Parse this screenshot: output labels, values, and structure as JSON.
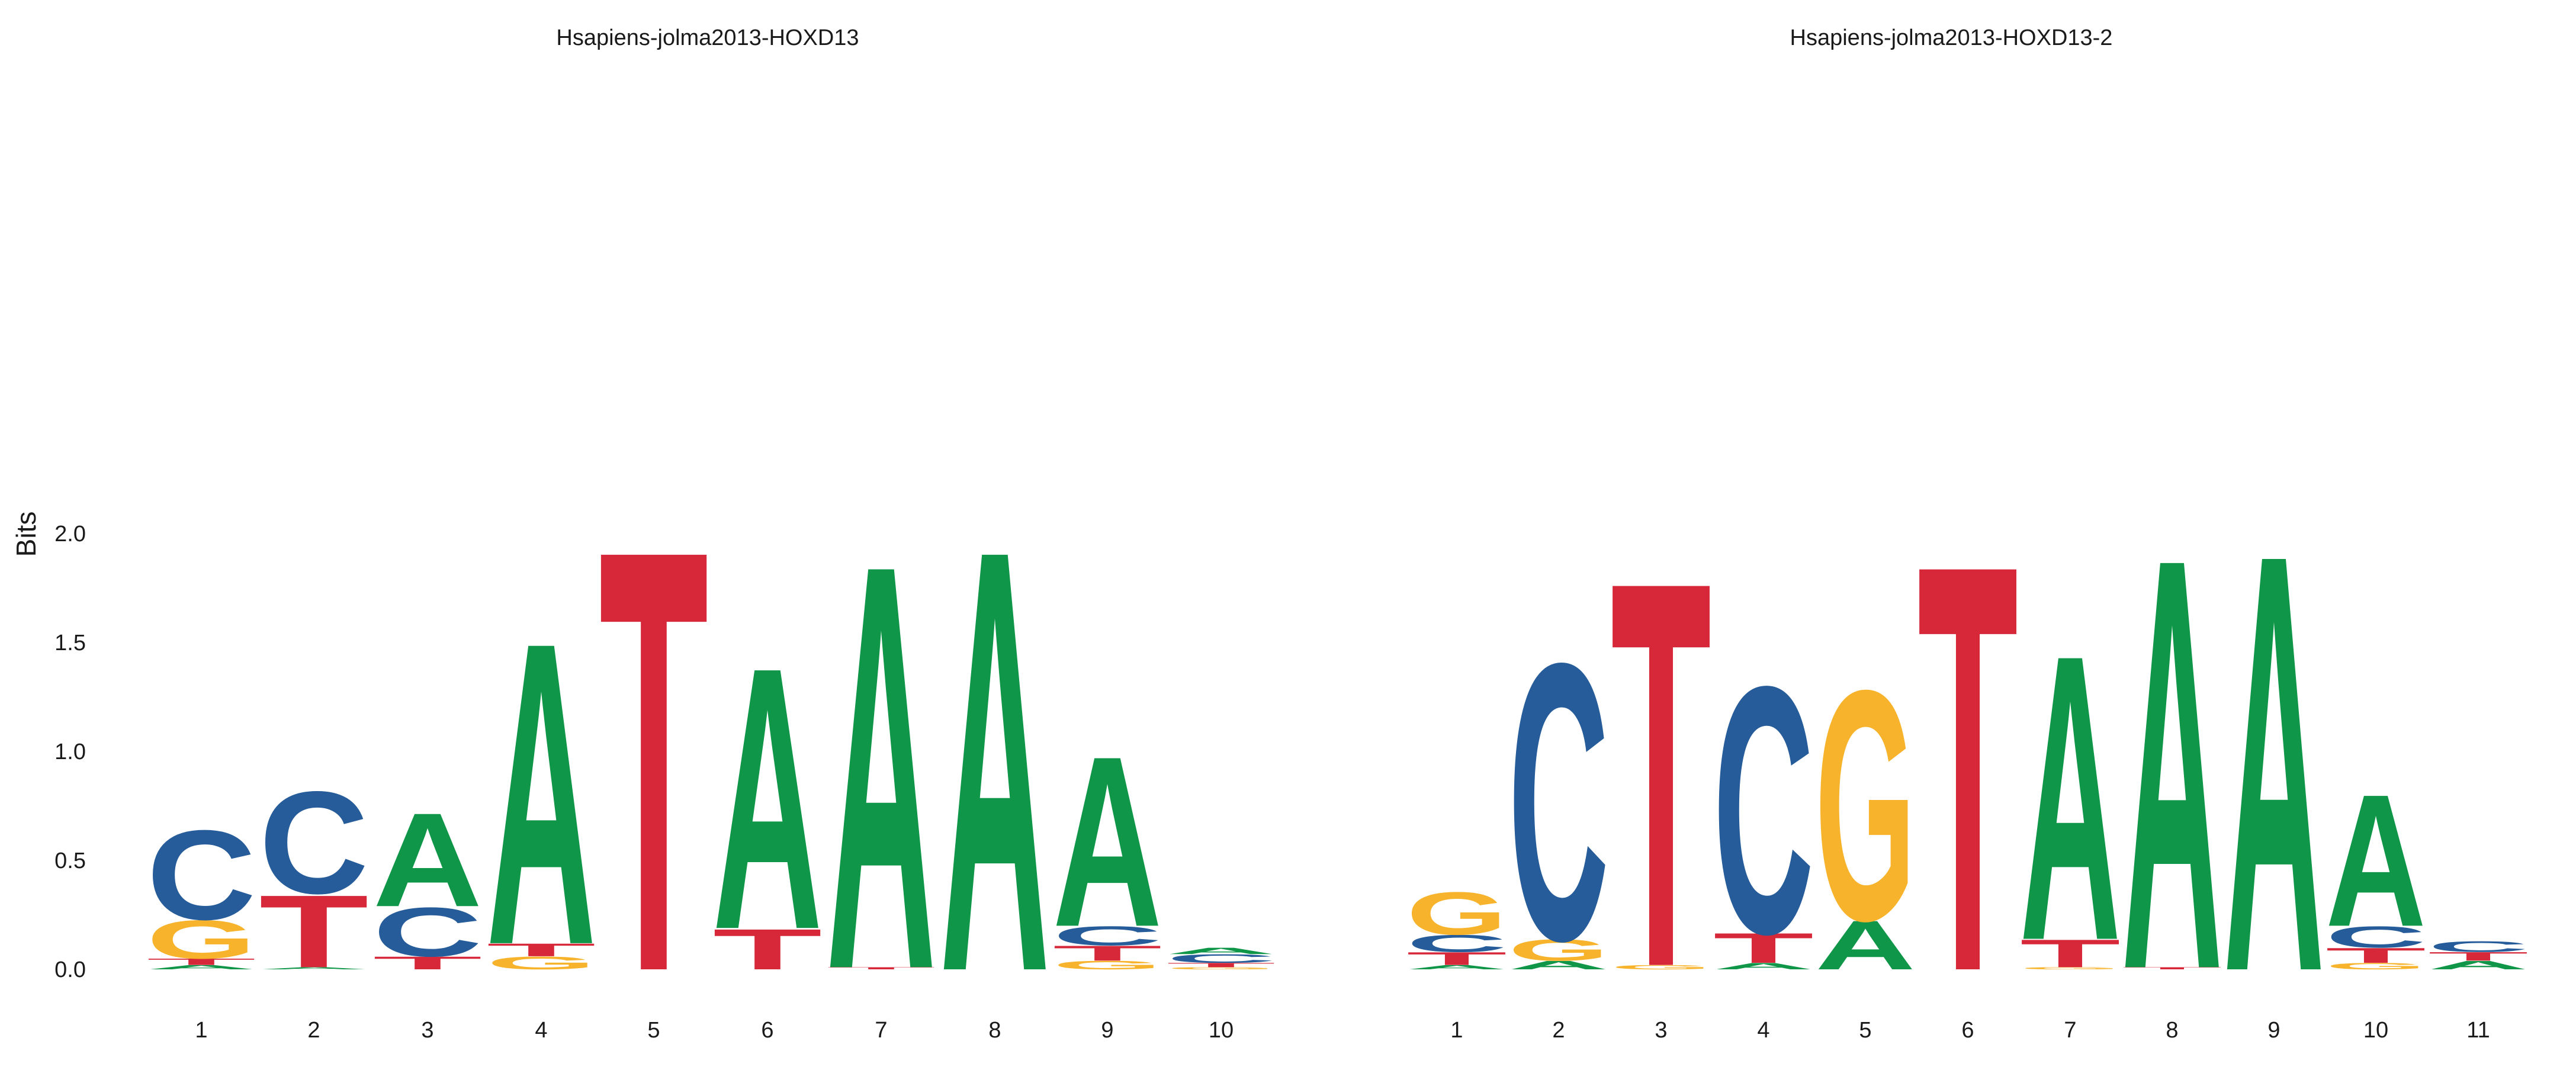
{
  "colors": {
    "A": "#109648",
    "C": "#255C99",
    "G": "#F7B32B",
    "T": "#D62839"
  },
  "chart_data": [
    {
      "type": "sequence-logo",
      "title": "Hsapiens-jolma2013-HOXD13",
      "ylabel": "Bits",
      "ylim": [
        0,
        2
      ],
      "yticks": [
        "0.0",
        "0.5",
        "1.0",
        "1.5",
        "2.0"
      ],
      "positions": [
        {
          "label": "1",
          "stack": [
            {
              "letter": "A",
              "bits": 0.02
            },
            {
              "letter": "T",
              "bits": 0.03
            },
            {
              "letter": "G",
              "bits": 0.18
            },
            {
              "letter": "C",
              "bits": 0.42
            }
          ]
        },
        {
          "label": "2",
          "stack": [
            {
              "letter": "A",
              "bits": 0.01
            },
            {
              "letter": "T",
              "bits": 0.34
            },
            {
              "letter": "C",
              "bits": 0.48
            }
          ]
        },
        {
          "label": "3",
          "stack": [
            {
              "letter": "T",
              "bits": 0.06
            },
            {
              "letter": "C",
              "bits": 0.23
            },
            {
              "letter": "A",
              "bits": 0.44
            }
          ]
        },
        {
          "label": "4",
          "stack": [
            {
              "letter": "G",
              "bits": 0.06
            },
            {
              "letter": "T",
              "bits": 0.06
            },
            {
              "letter": "A",
              "bits": 1.42
            }
          ]
        },
        {
          "label": "5",
          "stack": [
            {
              "letter": "T",
              "bits": 1.98
            }
          ]
        },
        {
          "label": "6",
          "stack": [
            {
              "letter": "T",
              "bits": 0.19
            },
            {
              "letter": "A",
              "bits": 1.23
            }
          ]
        },
        {
          "label": "7",
          "stack": [
            {
              "letter": "T",
              "bits": 0.01
            },
            {
              "letter": "A",
              "bits": 1.9
            }
          ]
        },
        {
          "label": "8",
          "stack": [
            {
              "letter": "A",
              "bits": 1.98
            }
          ]
        },
        {
          "label": "9",
          "stack": [
            {
              "letter": "G",
              "bits": 0.04
            },
            {
              "letter": "T",
              "bits": 0.07
            },
            {
              "letter": "C",
              "bits": 0.09
            },
            {
              "letter": "A",
              "bits": 0.8
            }
          ]
        },
        {
          "label": "10",
          "stack": [
            {
              "letter": "G",
              "bits": 0.01
            },
            {
              "letter": "T",
              "bits": 0.02
            },
            {
              "letter": "C",
              "bits": 0.04
            },
            {
              "letter": "A",
              "bits": 0.03
            }
          ]
        }
      ]
    },
    {
      "type": "sequence-logo",
      "title": "Hsapiens-jolma2013-HOXD13-2",
      "ylim": [
        0,
        2
      ],
      "positions": [
        {
          "label": "1",
          "stack": [
            {
              "letter": "A",
              "bits": 0.02
            },
            {
              "letter": "T",
              "bits": 0.06
            },
            {
              "letter": "C",
              "bits": 0.08
            },
            {
              "letter": "G",
              "bits": 0.2
            }
          ]
        },
        {
          "label": "2",
          "stack": [
            {
              "letter": "A",
              "bits": 0.04
            },
            {
              "letter": "G",
              "bits": 0.1
            },
            {
              "letter": "C",
              "bits": 1.3
            }
          ]
        },
        {
          "label": "3",
          "stack": [
            {
              "letter": "G",
              "bits": 0.02
            },
            {
              "letter": "T",
              "bits": 1.81
            }
          ]
        },
        {
          "label": "4",
          "stack": [
            {
              "letter": "A",
              "bits": 0.03
            },
            {
              "letter": "T",
              "bits": 0.14
            },
            {
              "letter": "C",
              "bits": 1.16
            }
          ]
        },
        {
          "label": "5",
          "stack": [
            {
              "letter": "A",
              "bits": 0.23
            },
            {
              "letter": "G",
              "bits": 1.08
            }
          ]
        },
        {
          "label": "6",
          "stack": [
            {
              "letter": "T",
              "bits": 1.91
            }
          ]
        },
        {
          "label": "7",
          "stack": [
            {
              "letter": "G",
              "bits": 0.01
            },
            {
              "letter": "T",
              "bits": 0.13
            },
            {
              "letter": "A",
              "bits": 1.34
            }
          ]
        },
        {
          "label": "8",
          "stack": [
            {
              "letter": "T",
              "bits": 0.01
            },
            {
              "letter": "A",
              "bits": 1.93
            }
          ]
        },
        {
          "label": "9",
          "stack": [
            {
              "letter": "A",
              "bits": 1.96
            }
          ]
        },
        {
          "label": "10",
          "stack": [
            {
              "letter": "G",
              "bits": 0.03
            },
            {
              "letter": "T",
              "bits": 0.07
            },
            {
              "letter": "C",
              "bits": 0.1
            },
            {
              "letter": "A",
              "bits": 0.62
            }
          ]
        },
        {
          "label": "11",
          "stack": [
            {
              "letter": "A",
              "bits": 0.04
            },
            {
              "letter": "T",
              "bits": 0.04
            },
            {
              "letter": "C",
              "bits": 0.05
            }
          ]
        }
      ]
    }
  ]
}
